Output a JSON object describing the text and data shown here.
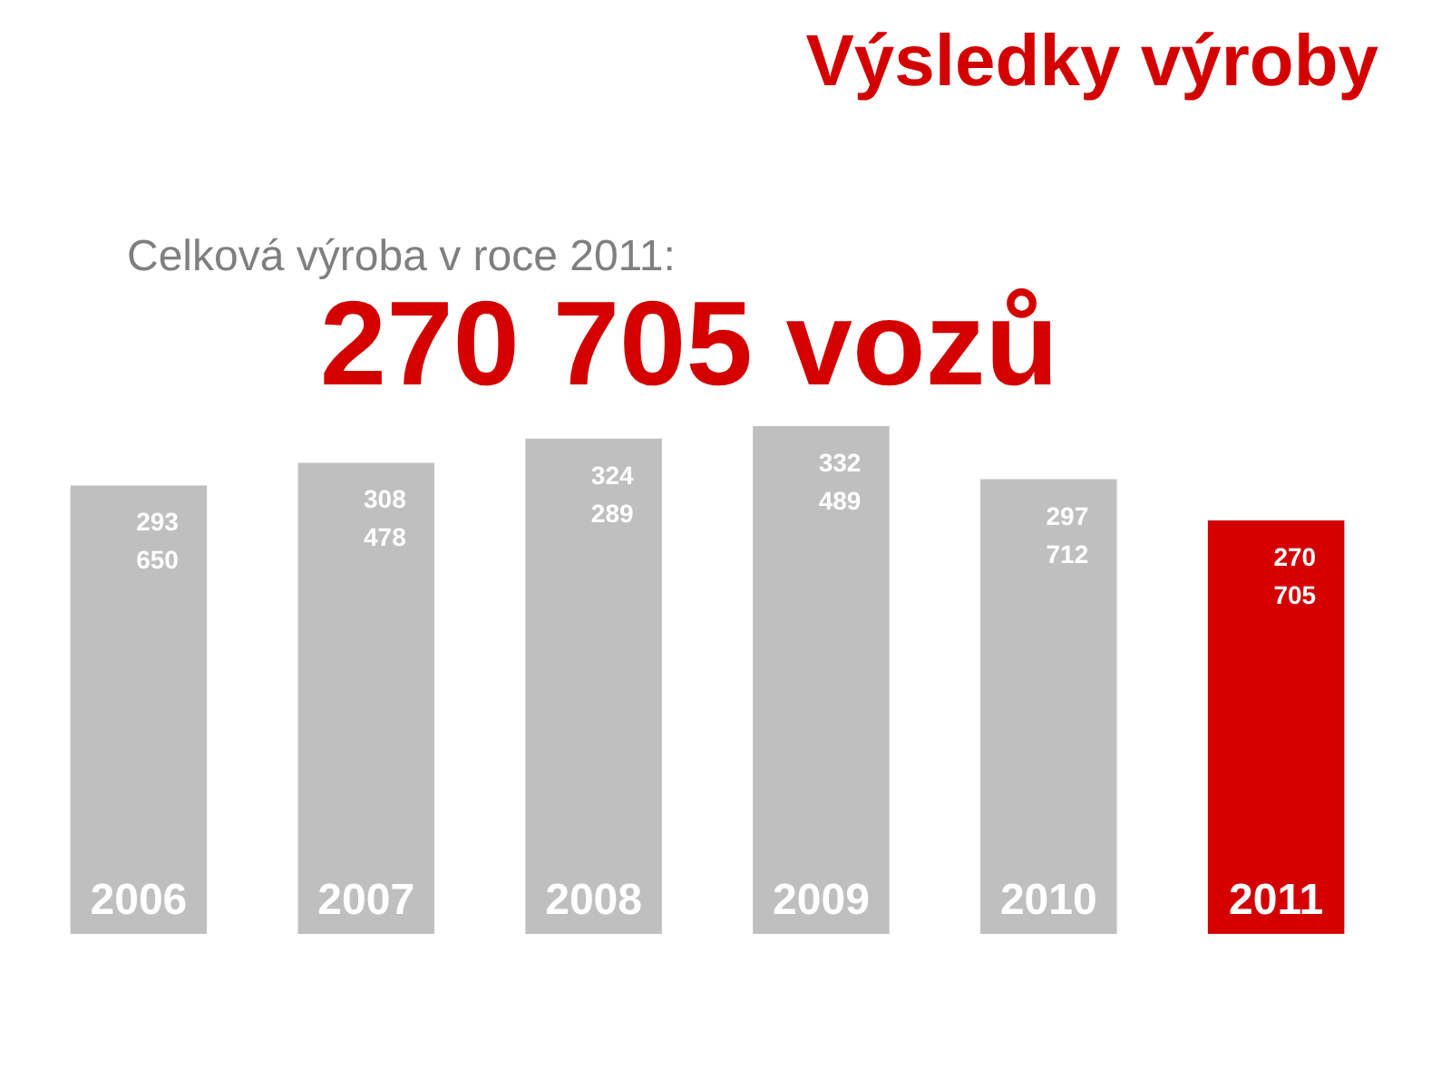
{
  "chart_data": {
    "type": "bar",
    "title": "Výsledky výroby",
    "subtitle": "Celková výroba v roce 2011:",
    "annotations": [
      "270 705 vozů"
    ],
    "categories": [
      "2006",
      "2007",
      "2008",
      "2009",
      "2010",
      "2011"
    ],
    "values": [
      293650,
      308478,
      324289,
      332489,
      297712,
      270705
    ],
    "colors": [
      "#bfbfbf",
      "#bfbfbf",
      "#bfbfbf",
      "#bfbfbf",
      "#bfbfbf",
      "#d40000"
    ],
    "data_labels": true,
    "value_labels": [
      "293 650",
      "308 478",
      "324 289",
      "332 489",
      "297 712",
      "270 705"
    ],
    "tick_labels": false,
    "legend": false
  }
}
